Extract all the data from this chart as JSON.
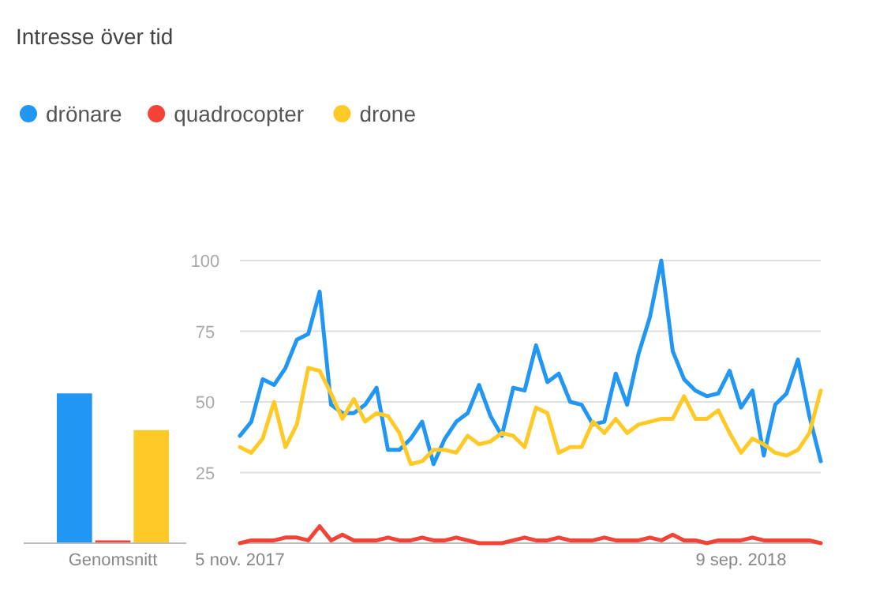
{
  "chart_data": [
    {
      "type": "bar",
      "title": "Intresse över tid",
      "categories": [
        "Genomsnitt"
      ],
      "ylim": [
        0,
        100
      ],
      "tick_labels": "x",
      "series": [
        {
          "color": "#2196f3",
          "values": [
            53
          ]
        },
        {
          "color": "#f44336",
          "values": [
            1
          ]
        },
        {
          "color": "#ffca28",
          "values": [
            40
          ]
        }
      ]
    },
    {
      "type": "line",
      "legend": "top",
      "grid": "y",
      "ylim": [
        0,
        100
      ],
      "yticks": [
        {
          "value": 0,
          "label": null
        },
        25,
        50,
        75,
        100
      ],
      "xlim": [
        "2017-11-05",
        "2018-10-28"
      ],
      "xticks": [
        {
          "value": "2017-11-05",
          "label": "5 nov. 2017"
        },
        {
          "value": "2018-09-09",
          "label": "9 sep. 2018"
        }
      ],
      "x": [
        "2017-11-05",
        "2017-11-12",
        "2017-11-19",
        "2017-11-26",
        "2017-12-03",
        "2017-12-10",
        "2017-12-17",
        "2017-12-24",
        "2017-12-31",
        "2018-01-07",
        "2018-01-14",
        "2018-01-21",
        "2018-01-28",
        "2018-02-04",
        "2018-02-11",
        "2018-02-18",
        "2018-02-25",
        "2018-03-04",
        "2018-03-11",
        "2018-03-18",
        "2018-03-25",
        "2018-04-01",
        "2018-04-08",
        "2018-04-15",
        "2018-04-22",
        "2018-04-29",
        "2018-05-06",
        "2018-05-13",
        "2018-05-20",
        "2018-05-27",
        "2018-06-03",
        "2018-06-10",
        "2018-06-17",
        "2018-06-24",
        "2018-07-01",
        "2018-07-08",
        "2018-07-15",
        "2018-07-22",
        "2018-07-29",
        "2018-08-05",
        "2018-08-12",
        "2018-08-19",
        "2018-08-26",
        "2018-09-02",
        "2018-09-09",
        "2018-09-16",
        "2018-09-23",
        "2018-09-30",
        "2018-10-07",
        "2018-10-14",
        "2018-10-21",
        "2018-10-28"
      ],
      "series": [
        {
          "name": "drönare",
          "color": "#2196f3",
          "values": [
            38,
            43,
            58,
            56,
            62,
            72,
            74,
            89,
            49,
            46,
            46,
            49,
            55,
            33,
            33,
            37,
            43,
            28,
            37,
            43,
            46,
            56,
            45,
            38,
            55,
            54,
            70,
            57,
            60,
            50,
            49,
            42,
            43,
            60,
            49,
            67,
            80,
            100,
            68,
            58,
            54,
            52,
            53,
            61,
            48,
            54,
            31,
            49,
            53,
            65,
            45,
            29
          ]
        },
        {
          "name": "quadrocopter",
          "color": "#f44336",
          "values": [
            0,
            1,
            1,
            1,
            2,
            2,
            1,
            6,
            1,
            3,
            1,
            1,
            1,
            2,
            1,
            1,
            2,
            1,
            1,
            2,
            1,
            0,
            0,
            0,
            1,
            2,
            1,
            1,
            2,
            1,
            1,
            1,
            2,
            1,
            1,
            1,
            2,
            1,
            3,
            1,
            1,
            0,
            1,
            1,
            1,
            2,
            1,
            1,
            1,
            1,
            1,
            0
          ]
        },
        {
          "name": "drone",
          "color": "#ffca28",
          "values": [
            34,
            32,
            37,
            50,
            34,
            42,
            62,
            61,
            53,
            44,
            51,
            43,
            46,
            45,
            39,
            28,
            29,
            33,
            33,
            32,
            38,
            35,
            36,
            39,
            38,
            34,
            48,
            46,
            32,
            34,
            34,
            43,
            39,
            44,
            39,
            42,
            43,
            44,
            44,
            52,
            44,
            44,
            47,
            39,
            32,
            37,
            35,
            32,
            31,
            33,
            39,
            54
          ]
        }
      ]
    }
  ]
}
